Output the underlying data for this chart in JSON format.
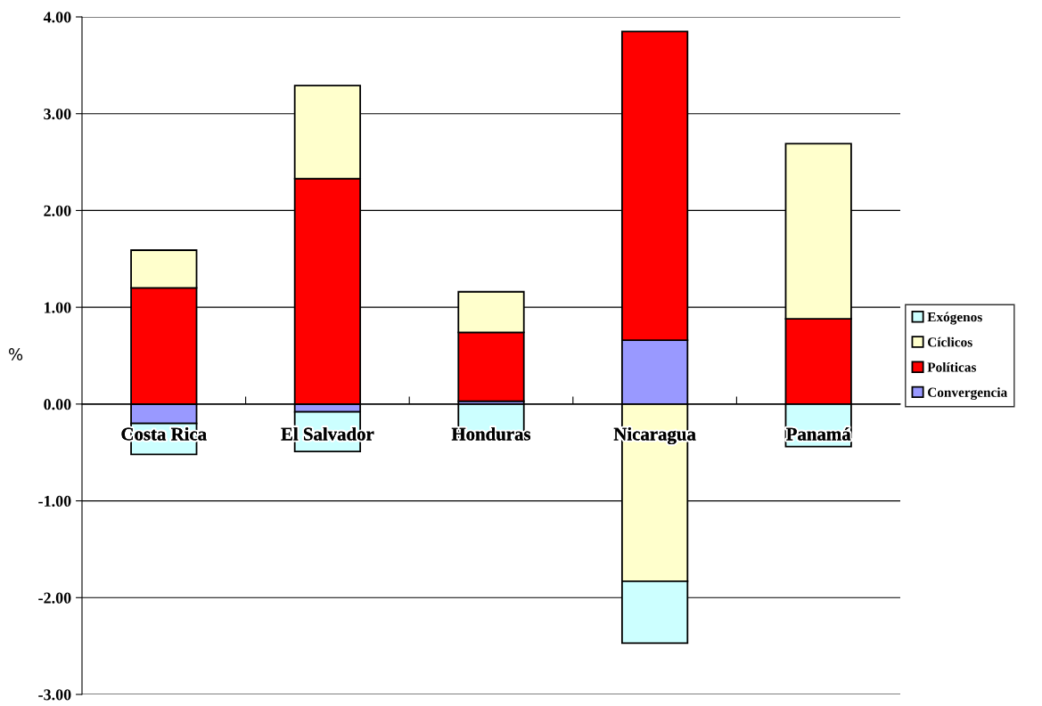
{
  "chart_data": {
    "type": "bar",
    "stacked": true,
    "ylabel": "%",
    "categories": [
      "Costa Rica",
      "El Salvador",
      "Honduras",
      "Nicaragua",
      "Panamá"
    ],
    "series": [
      {
        "name": "Convergencia",
        "color": "#9999ff",
        "values": [
          -0.2,
          -0.08,
          0.03,
          0.66,
          null
        ]
      },
      {
        "name": "Políticas",
        "color": "#ff0000",
        "values": [
          1.2,
          2.33,
          0.71,
          3.19,
          0.88
        ]
      },
      {
        "name": "Cíclicos",
        "color": "#ffffcc",
        "values": [
          0.39,
          0.96,
          0.42,
          -1.83,
          1.81
        ]
      },
      {
        "name": "Exógenos",
        "color": "#ccffff",
        "values": [
          -0.32,
          -0.41,
          -0.37,
          -0.64,
          -0.44
        ]
      }
    ],
    "ylim": [
      -3,
      4
    ],
    "yticks": [
      {
        "value": -3,
        "label": "-3.00"
      },
      {
        "value": -2,
        "label": "-2.00"
      },
      {
        "value": -1,
        "label": "-1.00"
      },
      {
        "value": 0,
        "label": "0.00"
      },
      {
        "value": 1,
        "label": "1.00"
      },
      {
        "value": 2,
        "label": "2.00"
      },
      {
        "value": 3,
        "label": "3.00"
      },
      {
        "value": 4,
        "label": "4.00"
      }
    ],
    "grid": "y",
    "legend": "right"
  }
}
